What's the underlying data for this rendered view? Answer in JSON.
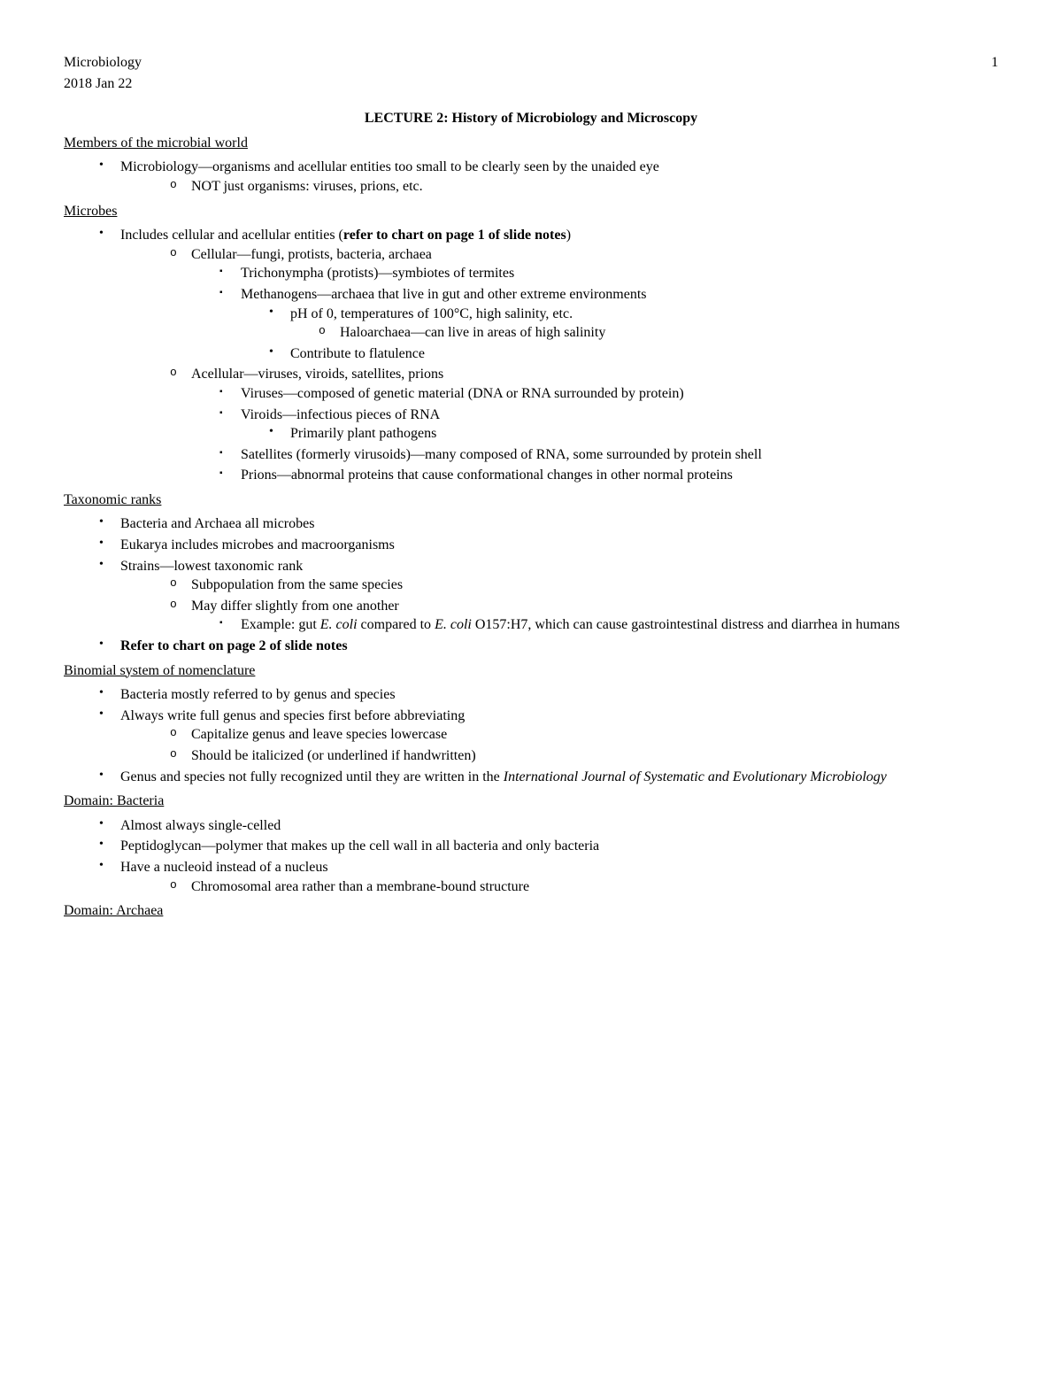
{
  "header": {
    "course": "Microbiology",
    "date": "2018 Jan 22",
    "page_number": "1"
  },
  "title": "LECTURE 2: History of Microbiology and Microscopy",
  "sections": {
    "members": {
      "heading": "Members of the microbial world",
      "b1": "Microbiology—organisms and acellular entities too small to be clearly seen by the unaided eye",
      "b1_1": "NOT just organisms: viruses, prions, etc."
    },
    "microbes": {
      "heading": "Microbes",
      "b1_pre": "Includes cellular and acellular entities (",
      "b1_bold": "refer to chart on page 1 of slide notes",
      "b1_post": ")",
      "cellular": "Cellular—fungi, protists, bacteria, archaea",
      "tricho": "Trichonympha (protists)—symbiotes of termites",
      "methan": "Methanogens—archaea that live in gut and other extreme environments",
      "ph": "pH of 0, temperatures of 100°C, high salinity, etc.",
      "halo": "Haloarchaea—can live in areas of high salinity",
      "flat": "Contribute to flatulence",
      "acellular": "Acellular—viruses, viroids, satellites, prions",
      "viruses": "Viruses—composed of genetic material (DNA or RNA surrounded by protein)",
      "viroids": "Viroids—infectious pieces of RNA",
      "plant": "Primarily plant pathogens",
      "satellites": "Satellites (formerly virusoids)—many composed of RNA, some surrounded by protein shell",
      "prions": "Prions—abnormal proteins that cause conformational changes in other normal proteins"
    },
    "taxonomic": {
      "heading": "Taxonomic ranks",
      "b1": "Bacteria and Archaea all microbes",
      "b2": "Eukarya includes microbes and macroorganisms",
      "b3": "Strains—lowest taxonomic rank",
      "b3_1": "Subpopulation from the same species",
      "b3_2": "May differ slightly from one another",
      "ex_pre": "Example: gut ",
      "ex_e1": "E. coli",
      "ex_mid": " compared to ",
      "ex_e2": "E. coli",
      "ex_post": " O157:H7, which can cause gastrointestinal distress and diarrhea in humans",
      "b4": "Refer to chart on page 2 of slide notes"
    },
    "binomial": {
      "heading": "Binomial system of nomenclature",
      "b1": "Bacteria mostly referred to by genus and species",
      "b2": "Always write full genus and species first before abbreviating",
      "b2_1": "Capitalize genus and leave species lowercase",
      "b2_2": "Should be italicized (or underlined if handwritten)",
      "b3_pre": "Genus and species not fully recognized until they are written in the ",
      "b3_it": "International Journal of Systematic and Evolutionary Microbiology"
    },
    "bacteria": {
      "heading": "Domain: Bacteria",
      "b1": "Almost always single-celled",
      "b2": "Peptidoglycan—polymer that makes up the cell wall in all bacteria and only bacteria",
      "b3": "Have a nucleoid instead of a nucleus",
      "b3_1": "Chromosomal area rather than a membrane-bound structure"
    },
    "archaea": {
      "heading": "Domain: Archaea"
    }
  }
}
